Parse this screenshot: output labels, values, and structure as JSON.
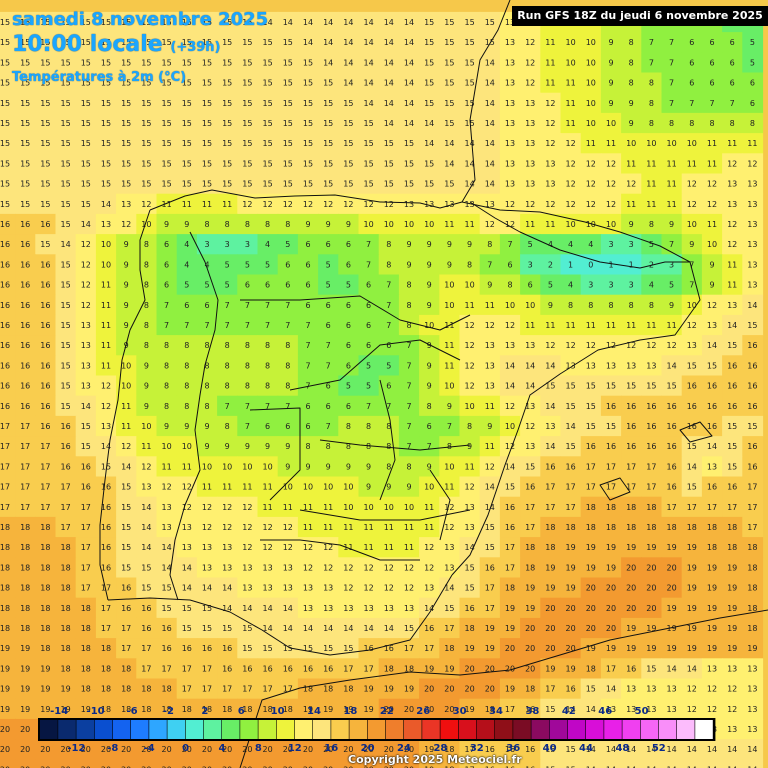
{
  "header": {
    "date": "samedi 8 novembre 2025",
    "time": "10:00 locale",
    "lead": "(+39h)",
    "variable": "Températures à 2m (°C)",
    "run": "Run GFS 18Z du jeudi 6 novembre 2025"
  },
  "footer": {
    "copyright": "Copyright 2025 Meteociel.fr"
  },
  "legend": {
    "top_labels": [
      "-14",
      "-10",
      "-6",
      "-2",
      "2",
      "6",
      "10",
      "14",
      "18",
      "22",
      "26",
      "30",
      "34",
      "38",
      "42",
      "46",
      "50"
    ],
    "bottom_labels": [
      "-12",
      "-8",
      "-4",
      "0",
      "4",
      "8",
      "12",
      "16",
      "20",
      "24",
      "28",
      "32",
      "36",
      "40",
      "44",
      "48",
      "52"
    ],
    "colors": [
      "#061642",
      "#0a2a6e",
      "#0b3fa0",
      "#0a4fd0",
      "#1463f0",
      "#1e7cff",
      "#2ea6ff",
      "#3fd0f2",
      "#52eed2",
      "#5ef2a0",
      "#68ee66",
      "#90f040",
      "#c6f238",
      "#eef33c",
      "#fff070",
      "#fde57c",
      "#f9cd4e",
      "#f6b43c",
      "#f39a30",
      "#ef7e2c",
      "#ea5a2a",
      "#ea3526",
      "#f00f0f",
      "#d8101c",
      "#b50f1a",
      "#8f0f18",
      "#7a0c24",
      "#8a0a60",
      "#a0089a",
      "#c006c6",
      "#d80ed8",
      "#e820e8",
      "#f040f0",
      "#f666f6",
      "#f98ef9",
      "#fcbcfc",
      "#ffffff"
    ]
  },
  "values": [
    "15 15 15 15 15 15 15 15 15 15 15 15 15 14 14 14 14 14 14 14 14 15 15 15 15 13 12 11 10 10 9 8 7 7 6 6 5 5",
    "15 15 15 15 15 15 15 15 15 15 15 15 15 15 15 14 14 14 14 14 14 15 15 15 15 13 12 11 10 10 9 8 7 7 6 6 6 5",
    "15 15 15 15 15 15 15 15 15 15 15 15 15 15 15 15 14 14 14 14 14 15 15 15 14 13 12 11 10 10 9 8 7 7 6 6 6 5",
    "15 15 15 15 15 15 15 15 15 15 15 15 15 15 15 15 15 14 14 14 14 15 15 15 14 13 12 11 11 10 9 8 8 7 6 6 6 6",
    "15 15 15 15 15 15 15 15 15 15 15 15 15 15 15 15 15 15 14 14 14 15 15 15 14 13 13 12 11 10 9 9 8 7 7 7 7 6",
    "15 15 15 15 15 15 15 15 15 15 15 15 15 15 15 15 15 15 15 14 14 14 15 15 14 13 13 12 11 10 10 9 8 8 8 8 8 8",
    "15 15 15 15 15 15 15 15 15 15 15 15 15 15 15 15 15 15 15 15 15 14 14 14 14 13 13 12 12 11 11 10 10 10 10 11 11 11",
    "15 15 15 15 15 15 15 15 15 15 15 15 15 15 15 15 15 15 15 15 15 15 14 14 14 13 13 13 12 12 12 11 11 11 11 11 12 12",
    "15 15 15 15 15 15 15 15 15 15 15 15 15 15 15 15 15 15 15 15 15 15 15 14 14 13 13 13 12 12 12 12 11 11 12 12 13 13",
    "15 15 15 15 15 14 13 12 11 11 11 11 12 12 12 12 12 12 12 12 13 13 13 13 13 12 12 12 12 12 12 11 11 11 12 12 13 13",
    "16 16 16 15 14 13 12 10 9 9 8 8 8 8 8 9 9 9 10 10 10 10 11 11 12 12 11 11 10 10 10 9 8 9 10 11 12 13",
    "16 16 15 14 12 10 9 8 6 4 3 3 3 4 5 6 6 6 7 8 9 9 9 9 8 7 5 4 4 4 3 3 5 7 9 10 12 13",
    "16 16 16 15 12 10 9 8 6 4 4 5 5 5 6 6 5 6 7 8 9 9 9 8 7 6 3 2 1 0 1 1 2 3 7 9 11 13",
    "16 16 16 15 12 11 9 8 6 5 5 5 6 6 6 6 5 5 6 7 8 9 10 10 9 8 6 5 4 3 3 3 4 5 7 9 11 13",
    "16 16 16 15 12 11 9 8 7 6 6 7 7 7 7 6 6 6 6 7 8 9 10 11 11 10 10 9 8 8 8 8 8 9 10 12 13 14",
    "16 16 16 15 13 11 9 8 7 7 7 7 7 7 7 7 6 6 6 7 8 10 11 12 12 12 11 11 11 11 11 11 11 11 12 13 14 15",
    "16 16 16 15 13 11 9 8 8 8 8 8 8 8 8 7 7 6 6 6 7 9 11 12 13 13 13 12 12 12 12 12 12 12 13 14 15 16",
    "16 16 16 15 13 11 10 9 8 8 8 8 8 8 8 7 7 6 5 5 7 9 11 12 13 14 14 14 13 13 13 13 13 14 15 15 16 16",
    "16 16 16 15 13 12 10 9 8 8 8 8 8 8 8 7 6 5 5 6 7 9 10 12 13 14 14 15 15 15 15 15 15 15 16 16 16 16",
    "16 16 16 15 14 12 11 9 8 8 8 7 7 7 7 6 6 6 7 7 7 8 9 10 11 12 13 14 15 15 16 16 16 16 16 16 16 16",
    "17 17 16 16 15 13 11 10 9 9 9 8 7 6 6 6 7 8 8 8 7 6 7 8 9 10 12 13 14 15 15 16 16 16 16 16 15 15",
    "17 17 17 16 15 14 12 11 10 10 9 9 9 9 9 8 8 8 8 8 7 7 8 9 11 12 13 14 15 16 16 16 16 16 15 14 15 16",
    "17 17 17 16 16 15 14 12 11 11 10 10 10 10 9 9 9 9 9 8 8 9 10 11 12 14 15 16 16 17 17 17 17 16 14 13 15 16",
    "17 17 17 17 16 16 15 13 12 12 11 11 11 11 10 10 10 10 9 9 9 10 11 12 14 15 16 17 17 17 17 17 17 16 15 16 16 17",
    "17 17 17 17 17 16 15 14 13 12 12 12 12 11 11 11 11 10 10 10 10 11 12 13 14 16 17 17 17 18 18 18 18 17 17 17 17 17",
    "18 18 18 17 17 16 15 14 13 13 12 12 12 12 12 11 11 11 11 11 11 11 12 13 15 16 17 18 18 18 18 18 18 18 18 18 18 17",
    "18 18 18 18 17 16 15 14 14 13 13 13 12 12 12 12 12 11 11 11 11 12 13 14 15 17 18 18 19 19 19 19 19 19 19 18 18 18",
    "18 18 18 18 17 16 15 15 14 14 13 13 13 13 13 12 12 12 12 12 12 12 13 15 16 17 18 19 19 19 19 20 20 20 19 19 19 18",
    "18 18 18 18 17 17 16 15 15 14 14 14 13 13 13 13 13 12 12 12 12 13 14 15 17 18 19 19 19 20 20 20 20 20 19 19 19 18",
    "18 18 18 18 18 17 16 16 15 15 15 14 14 14 14 13 13 13 13 13 13 14 15 16 17 19 19 20 20 20 20 20 20 19 19 19 19 18",
    "18 18 18 18 18 17 17 16 16 15 15 15 15 14 14 14 14 14 14 14 15 16 17 18 19 19 20 20 20 20 20 19 19 19 19 19 19 18",
    "19 19 18 18 18 18 17 17 16 16 16 16 15 15 15 15 15 15 16 16 17 17 18 19 19 20 20 20 20 19 19 19 19 19 19 19 19 19",
    "19 19 19 18 18 18 18 17 17 17 17 16 16 16 16 16 16 17 17 18 18 19 19 20 20 20 20 19 19 18 17 16 15 14 14 13 13 13",
    "19 19 19 19 18 18 18 18 18 17 17 17 17 17 17 18 18 18 19 19 19 20 20 20 20 19 18 17 16 15 14 13 13 13 12 12 12 13",
    "19 19 19 19 19 18 18 18 18 18 18 18 18 18 18 19 19 19 19 20 20 20 20 19 18 17 16 15 14 14 13 13 13 13 12 12 12 13",
    "20 20 20 19 19 19 19 19 19 19 19 19 19 19 19 19 19 20 20 20 20 20 19 18 17 16 15 15 14 14 14 14 13 13 13 13 13 13",
    "20 20 20 20 20 20 20 20 20 20 20 20 20 20 20 20 20 20 20 20 20 19 18 17 16 16 16 15 15 14 14 14 14 14 14 14 14 14",
    "20 20 20 20 20 20 20 20 20 20 20 20 20 20 20 20 20 20 20 20 20 19 18 17 16 16 16 15 15 14 14 14 14 14 14 14 14 14"
  ]
}
